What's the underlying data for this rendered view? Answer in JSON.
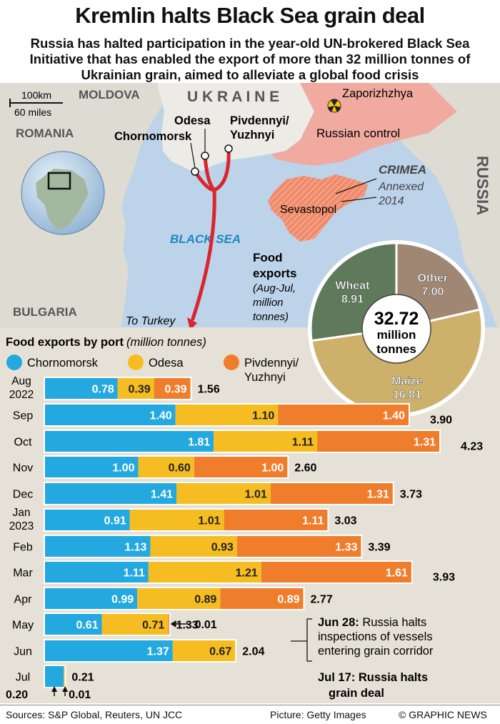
{
  "header": {
    "title": "Kremlin halts Black Sea grain deal",
    "subtitle": "Russia has halted participation in the year-old UN-brokered Black Sea Initiative that has enabled the export of more than 32 million tonnes of Ukrainian grain, aimed to alleviate a global food crisis"
  },
  "map": {
    "scale_km": "100km",
    "scale_miles": "60 miles",
    "countries": {
      "moldova": "MOLDOVA",
      "ukraine": "U K R A I N E",
      "romania": "ROMANIA",
      "bulgaria": "BULGARIA",
      "russia": "RUSSIA"
    },
    "sea": "BLACK SEA",
    "ports": {
      "odesa": "Odesa",
      "chornomorsk": "Chornomorsk",
      "pivdennyi_line1": "Pivdennyi/",
      "pivdennyi_line2": "Yuzhnyi"
    },
    "zaporizhzhya": "Zaporizhzhya",
    "russian_control": "Russian control",
    "crimea": "CRIMEA",
    "annexed_line1": "Annexed",
    "annexed_line2": "2014",
    "sevastopol": "Sevastopol",
    "to_turkey": "To Turkey",
    "colors": {
      "sea": "#bcd3ea",
      "land": "#dedbd3",
      "ukraine_land": "#ecebe6",
      "russian_control": "#f1aaa0",
      "crimea": "#ef8a6a",
      "route": "#d9262d"
    }
  },
  "food_exports": {
    "label_line1": "Food",
    "label_line2": "exports",
    "note_line1": "(Aug-Jul,",
    "note_line2": "million",
    "note_line3": "tonnes)",
    "total_value": "32.72",
    "total_unit_line1": "million",
    "total_unit_line2": "tonnes"
  },
  "chart_data": [
    {
      "type": "pie",
      "title": "Food exports",
      "subtitle": "(Aug-Jul, million tonnes)",
      "slices": [
        {
          "label": "Wheat",
          "value": 8.91
        },
        {
          "label": "Other",
          "value": 7.0
        },
        {
          "label": "Maize",
          "value": 16.81
        }
      ],
      "total": 32.72
    },
    {
      "type": "bar",
      "stacked": true,
      "orientation": "horizontal",
      "title": "Food exports by port",
      "title_unit": "(million tonnes)",
      "legend_placement": "top",
      "categories": [
        {
          "line1": "Aug",
          "line2": "2022"
        },
        {
          "line1": "Sep",
          "line2": ""
        },
        {
          "line1": "Oct",
          "line2": ""
        },
        {
          "line1": "Nov",
          "line2": ""
        },
        {
          "line1": "Dec",
          "line2": ""
        },
        {
          "line1": "Jan",
          "line2": "2023"
        },
        {
          "line1": "Feb",
          "line2": ""
        },
        {
          "line1": "Mar",
          "line2": ""
        },
        {
          "line1": "Apr",
          "line2": ""
        },
        {
          "line1": "May",
          "line2": ""
        },
        {
          "line1": "Jun",
          "line2": ""
        },
        {
          "line1": "Jul",
          "line2": ""
        }
      ],
      "series": [
        {
          "name": "Chornomorsk",
          "color": "#23a8e0",
          "values": [
            0.78,
            1.4,
            1.81,
            1.0,
            1.41,
            0.91,
            1.13,
            1.11,
            0.99,
            0.61,
            1.37,
            0.2
          ]
        },
        {
          "name": "Odesa",
          "color": "#f6bd22",
          "values": [
            0.39,
            1.1,
            1.11,
            0.6,
            1.01,
            1.01,
            0.93,
            1.21,
            0.89,
            0.71,
            0.67,
            0.01
          ]
        },
        {
          "name": "Pivdennyi/",
          "name_line2": "Yuzhnyi",
          "color": "#f07d2c",
          "values": [
            0.39,
            1.4,
            1.31,
            1.0,
            1.31,
            1.11,
            1.33,
            1.61,
            0.89,
            0.01,
            0.0,
            0.0
          ]
        }
      ],
      "totals": [
        "1.56",
        "3.90",
        "4.23",
        "2.60",
        "3.73",
        "3.03",
        "3.39",
        "3.93",
        "2.77",
        "1.33",
        "2.04",
        "0.21"
      ],
      "small_labels": {
        "may_pivdennyi": "0.01",
        "jul_chornomorsk": "0.20",
        "jul_odesa": "0.01"
      }
    }
  ],
  "annotations": {
    "jun28_date": "Jun 28:",
    "jun28_line1": " Russia halts",
    "jun28_line2": "inspections of vessels",
    "jun28_line3": "entering grain corridor",
    "jul17_line1": "Jul 17: Russia halts",
    "jul17_line2": "grain deal"
  },
  "footer": {
    "sources": "Sources: S&P Global, Reuters, UN JCC",
    "picture": "Picture: Getty Images",
    "credit": "© GRAPHIC NEWS"
  }
}
